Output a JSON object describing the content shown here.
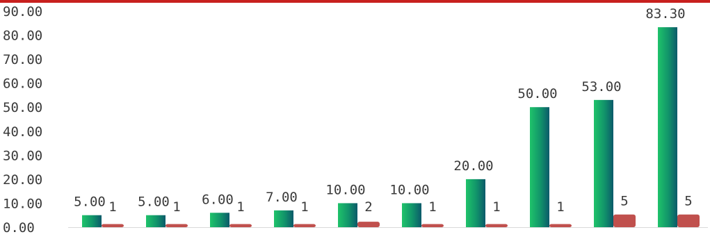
{
  "chart_data": {
    "type": "bar",
    "categories": [
      "",
      "",
      "",
      "",
      "",
      "",
      "",
      "",
      "",
      ""
    ],
    "series": [
      {
        "values": [
          5.0,
          5.0,
          6.0,
          7.0,
          10.0,
          10.0,
          20.0,
          50.0,
          53.0,
          83.3
        ],
        "labels": [
          "5.00",
          "5.00",
          "6.00",
          "7.00",
          "10.00",
          "10.00",
          "20.00",
          "50.00",
          "53.00",
          "83.30"
        ],
        "color": "#1fc36a",
        "color_dark": "#0b5a6a"
      },
      {
        "values": [
          1,
          1,
          1,
          1,
          2,
          1,
          1,
          1,
          5,
          5
        ],
        "labels": [
          "1",
          "1",
          "1",
          "1",
          "2",
          "1",
          "1",
          "1",
          "5",
          "5"
        ],
        "color": "#c0504d"
      }
    ],
    "yticks": [
      "0.00",
      "10.00",
      "20.00",
      "30.00",
      "40.00",
      "50.00",
      "60.00",
      "70.00",
      "80.00",
      "90.00"
    ],
    "ylim": [
      0,
      90
    ],
    "title": "",
    "xlabel": "",
    "ylabel": "",
    "grid": false,
    "legend": "none",
    "accent_color": "#c8201e"
  }
}
